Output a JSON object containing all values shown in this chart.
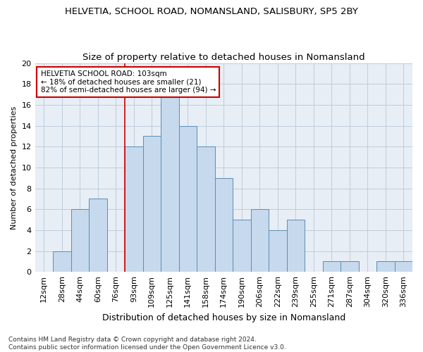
{
  "title1": "HELVETIA, SCHOOL ROAD, NOMANSLAND, SALISBURY, SP5 2BY",
  "title2": "Size of property relative to detached houses in Nomansland",
  "xlabel": "Distribution of detached houses by size in Nomansland",
  "ylabel": "Number of detached properties",
  "bar_labels": [
    "12sqm",
    "28sqm",
    "44sqm",
    "60sqm",
    "76sqm",
    "93sqm",
    "109sqm",
    "125sqm",
    "141sqm",
    "158sqm",
    "174sqm",
    "190sqm",
    "206sqm",
    "222sqm",
    "239sqm",
    "255sqm",
    "271sqm",
    "287sqm",
    "304sqm",
    "320sqm",
    "336sqm"
  ],
  "bar_values": [
    0,
    2,
    6,
    7,
    0,
    12,
    13,
    17,
    14,
    12,
    9,
    5,
    6,
    4,
    5,
    0,
    1,
    1,
    0,
    1,
    1
  ],
  "bar_color": "#c6d9ed",
  "bar_edgecolor": "#5b8db8",
  "grid_color": "#b8c8d8",
  "background_color": "#e8eef5",
  "annotation_line1": "HELVETIA SCHOOL ROAD: 103sqm",
  "annotation_line2": "← 18% of detached houses are smaller (21)",
  "annotation_line3": "82% of semi-detached houses are larger (94) →",
  "annotation_box_facecolor": "#ffffff",
  "annotation_box_edgecolor": "#cc0000",
  "red_line_x": 4.5,
  "ylim": [
    0,
    20
  ],
  "yticks": [
    0,
    2,
    4,
    6,
    8,
    10,
    12,
    14,
    16,
    18,
    20
  ],
  "footer": "Contains HM Land Registry data © Crown copyright and database right 2024.\nContains public sector information licensed under the Open Government Licence v3.0.",
  "title1_fontsize": 9.5,
  "title2_fontsize": 9.5,
  "xlabel_fontsize": 9,
  "ylabel_fontsize": 8,
  "tick_fontsize": 8,
  "annotation_fontsize": 7.5,
  "footer_fontsize": 6.5
}
